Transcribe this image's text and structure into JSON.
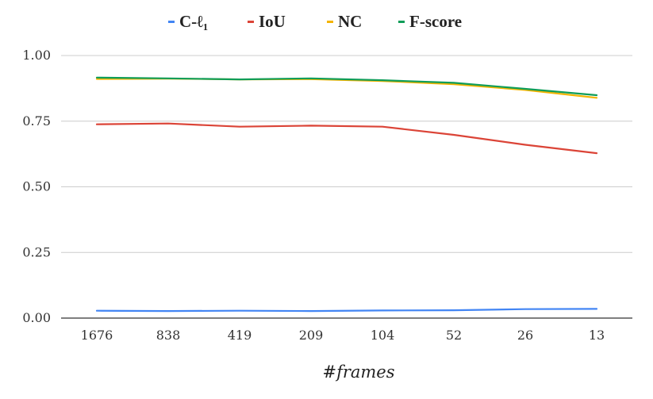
{
  "chart_data": {
    "type": "line",
    "categories": [
      "1676",
      "838",
      "419",
      "209",
      "104",
      "52",
      "26",
      "13"
    ],
    "series": [
      {
        "name": "C-ℓ₁",
        "color": "#4285f4",
        "values": [
          0.028,
          0.027,
          0.028,
          0.027,
          0.029,
          0.03,
          0.034,
          0.035
        ]
      },
      {
        "name": "IoU",
        "color": "#db4437",
        "values": [
          0.738,
          0.741,
          0.729,
          0.733,
          0.729,
          0.698,
          0.66,
          0.628
        ]
      },
      {
        "name": "NC",
        "color": "#f4b400",
        "values": [
          0.911,
          0.912,
          0.909,
          0.91,
          0.903,
          0.891,
          0.869,
          0.839
        ]
      },
      {
        "name": "F-score",
        "color": "#0f9d58",
        "values": [
          0.916,
          0.913,
          0.909,
          0.913,
          0.906,
          0.896,
          0.873,
          0.849
        ]
      }
    ],
    "yticks": [
      "0.00",
      "0.25",
      "0.50",
      "0.75",
      "1.00"
    ],
    "ylim": [
      0,
      1
    ],
    "xlabel": "#frames",
    "ylabel": "",
    "grid": "horizontal",
    "legend_position": "top-center"
  }
}
